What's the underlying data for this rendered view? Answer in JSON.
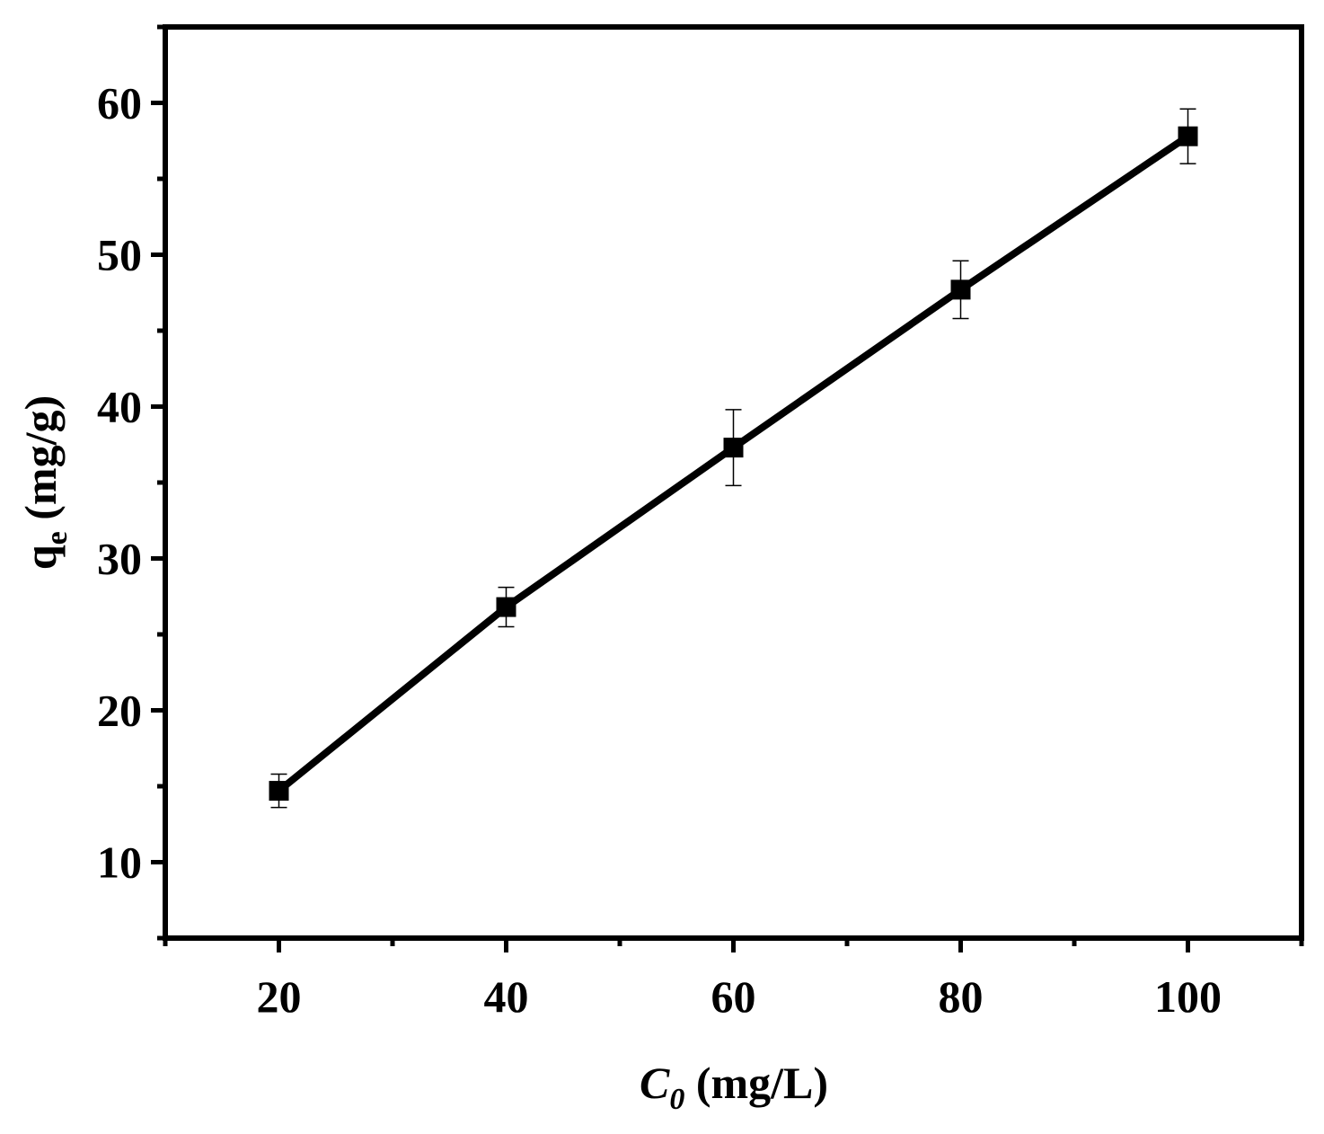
{
  "chart_data": {
    "type": "line",
    "title": "",
    "xlabel": {
      "main": "C",
      "sub": "0",
      "rest": " (mg/L)"
    },
    "ylabel": {
      "main": "q",
      "sub": "e",
      "rest": " (mg/g)"
    },
    "xlim": [
      10,
      110
    ],
    "ylim": [
      5,
      65
    ],
    "x_ticks": [
      20,
      40,
      60,
      80,
      100
    ],
    "y_ticks": [
      10,
      20,
      30,
      40,
      50,
      60
    ],
    "grid": false,
    "legend": "none",
    "series": [
      {
        "marker": "square",
        "color": "#000000",
        "x": [
          20,
          40,
          60,
          80,
          100
        ],
        "y": [
          14.7,
          26.8,
          37.3,
          47.7,
          57.8
        ],
        "error": [
          1.1,
          1.3,
          2.5,
          1.9,
          1.8
        ]
      }
    ]
  }
}
